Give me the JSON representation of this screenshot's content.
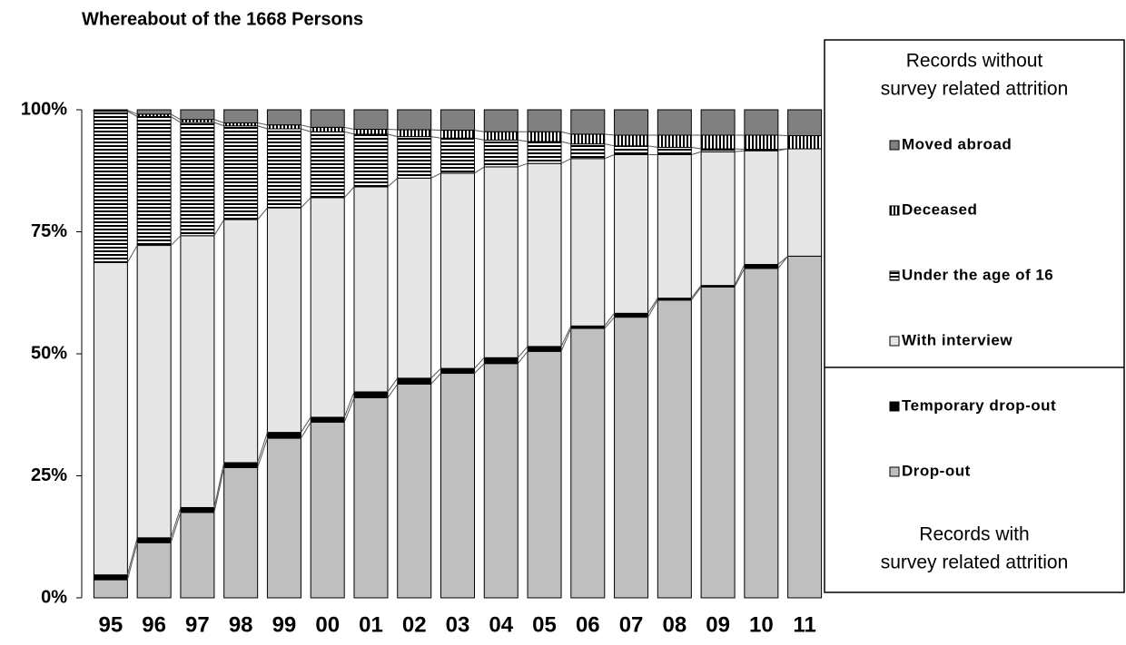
{
  "chart_data": {
    "type": "stacked_bar",
    "title": "Whereabout of the 1668 Persons",
    "categories": [
      "95",
      "96",
      "97",
      "98",
      "99",
      "00",
      "01",
      "02",
      "03",
      "04",
      "05",
      "06",
      "07",
      "08",
      "09",
      "10",
      "11"
    ],
    "ylim": [
      0,
      100
    ],
    "yticks": [
      {
        "value": 0,
        "label": "0%"
      },
      {
        "value": 25,
        "label": "25%"
      },
      {
        "value": 50,
        "label": "50%"
      },
      {
        "value": 75,
        "label": "75%"
      },
      {
        "value": 100,
        "label": "100%"
      }
    ],
    "series": [
      {
        "name": "Drop-out",
        "color": "#bfbfbf",
        "values": [
          3.7,
          11.3,
          17.5,
          26.7,
          32.7,
          36,
          41,
          43.8,
          46,
          48,
          50.5,
          55.2,
          57.5,
          61,
          63.7,
          67.5,
          70
        ]
      },
      {
        "name": "Temporary drop-out",
        "color": "#000000",
        "values": [
          1,
          1,
          1,
          1,
          1.2,
          1,
          1.2,
          1.2,
          1,
          1.2,
          1,
          0.5,
          0.8,
          0.4,
          0.3,
          0.8,
          0
        ]
      },
      {
        "name": "With interview",
        "color": "#e6e6e6",
        "values": [
          64,
          59.9,
          55.7,
          49.8,
          46,
          45,
          42,
          41,
          40,
          39.1,
          37.5,
          34.3,
          32.5,
          29.4,
          27.4,
          23.3,
          22
        ]
      },
      {
        "name": "Under the age of 16",
        "color": "#000000",
        "pattern": "horizontal",
        "values": [
          31,
          26.4,
          23.2,
          19.2,
          16.2,
          13.5,
          10.8,
          8.5,
          7.2,
          5.5,
          4.5,
          3,
          1.8,
          1.5,
          0.6,
          0.3,
          0
        ]
      },
      {
        "name": "Deceased",
        "color": "#000000",
        "pattern": "vertical",
        "values": [
          0.2,
          0.5,
          0.6,
          0.6,
          0.8,
          0.9,
          1,
          1.4,
          1.6,
          1.7,
          2,
          2,
          2.2,
          2.5,
          2.8,
          2.9,
          2.7
        ]
      },
      {
        "name": "Moved abroad",
        "color": "#808080",
        "values": [
          0.1,
          0.9,
          2,
          2.7,
          3.1,
          3.6,
          4,
          4.1,
          4.2,
          4.5,
          4.5,
          5,
          5.2,
          5.2,
          5.2,
          5.2,
          5.3
        ]
      }
    ],
    "legend_groups": [
      {
        "title": [
          "Records without",
          "survey related attrition"
        ],
        "series": [
          5,
          4,
          3,
          2
        ]
      },
      {
        "title": [
          "Records with",
          "survey related attrition"
        ],
        "series": [
          1,
          0
        ]
      }
    ]
  }
}
